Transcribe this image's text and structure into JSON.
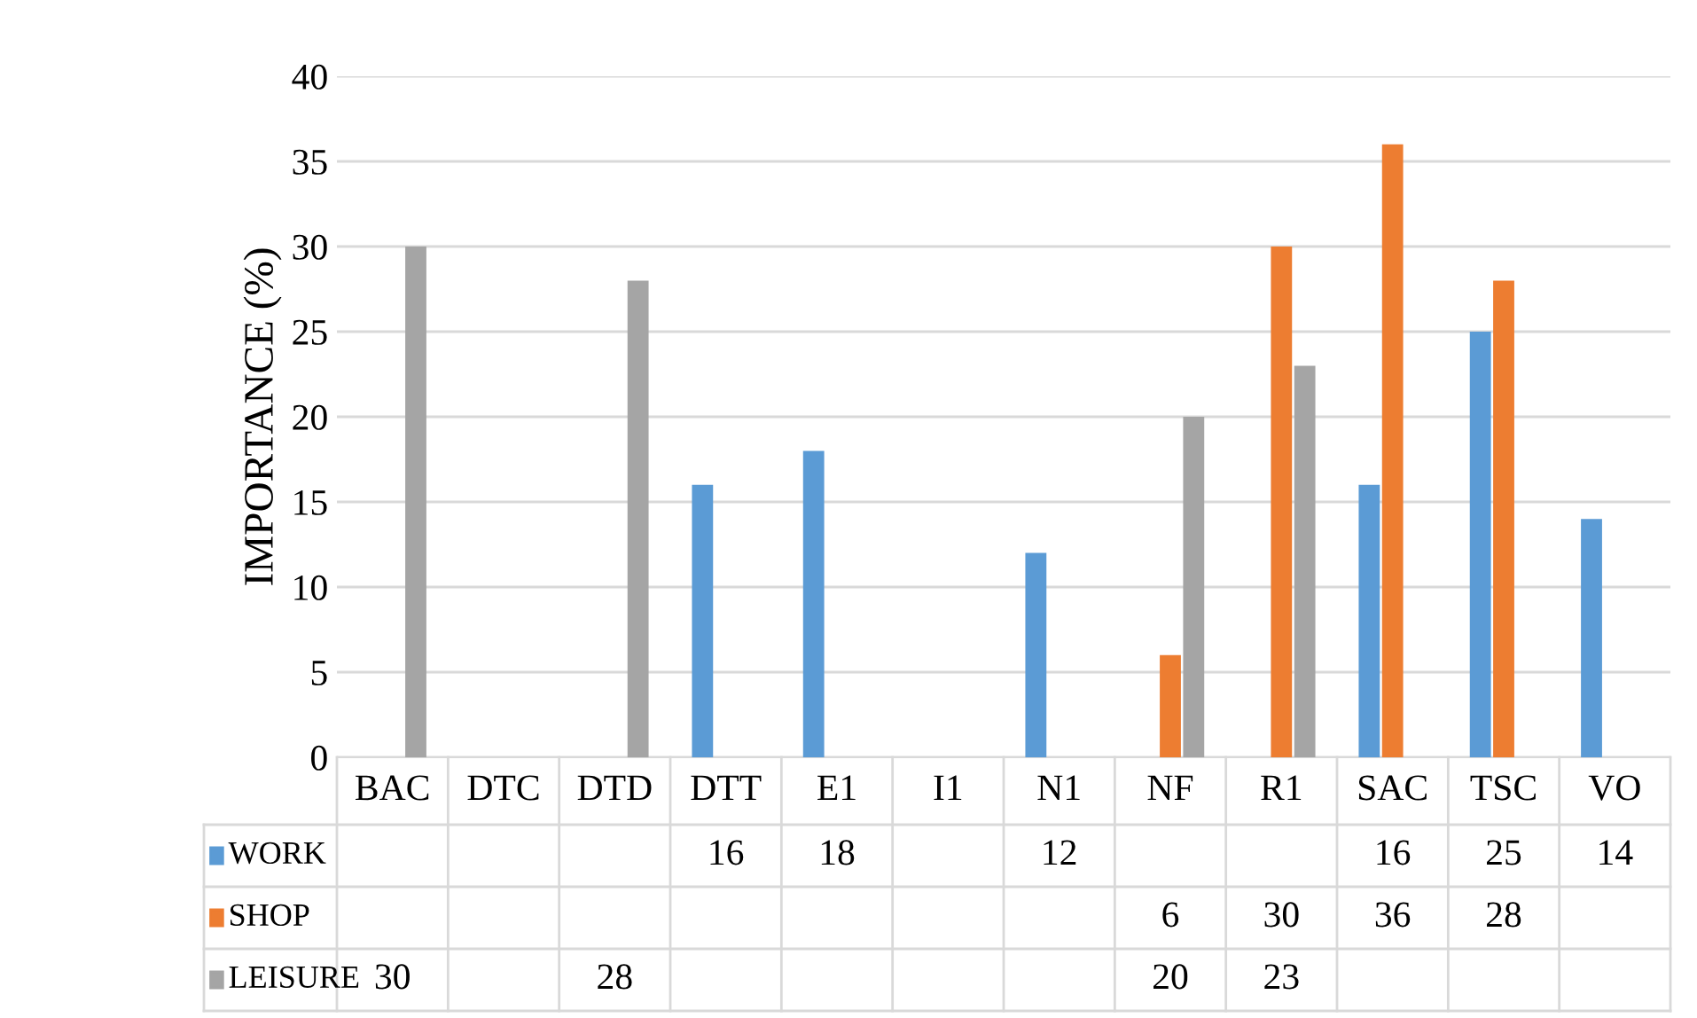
{
  "chart_data": {
    "type": "bar",
    "ylabel": "IMPORTANCE (%)",
    "categories": [
      "BAC",
      "DTC",
      "DTD",
      "DTT",
      "E1",
      "I1",
      "N1",
      "NF",
      "R1",
      "SAC",
      "TSC",
      "VO"
    ],
    "series": [
      {
        "name": "WORK",
        "color": "#5b9bd5",
        "values": [
          null,
          null,
          null,
          16,
          18,
          null,
          12,
          null,
          null,
          16,
          25,
          14
        ]
      },
      {
        "name": "SHOP",
        "color": "#ed7d31",
        "values": [
          null,
          null,
          null,
          null,
          null,
          null,
          null,
          6,
          30,
          36,
          28,
          null
        ]
      },
      {
        "name": "LEISURE",
        "color": "#a5a5a5",
        "values": [
          30,
          null,
          28,
          null,
          null,
          null,
          null,
          20,
          23,
          null,
          null,
          null
        ]
      }
    ],
    "ylim": [
      0,
      40
    ],
    "yticks": [
      0,
      5,
      10,
      15,
      20,
      25,
      30,
      35,
      40
    ],
    "grid": "y",
    "legend": "bottom",
    "data_labels": true
  }
}
